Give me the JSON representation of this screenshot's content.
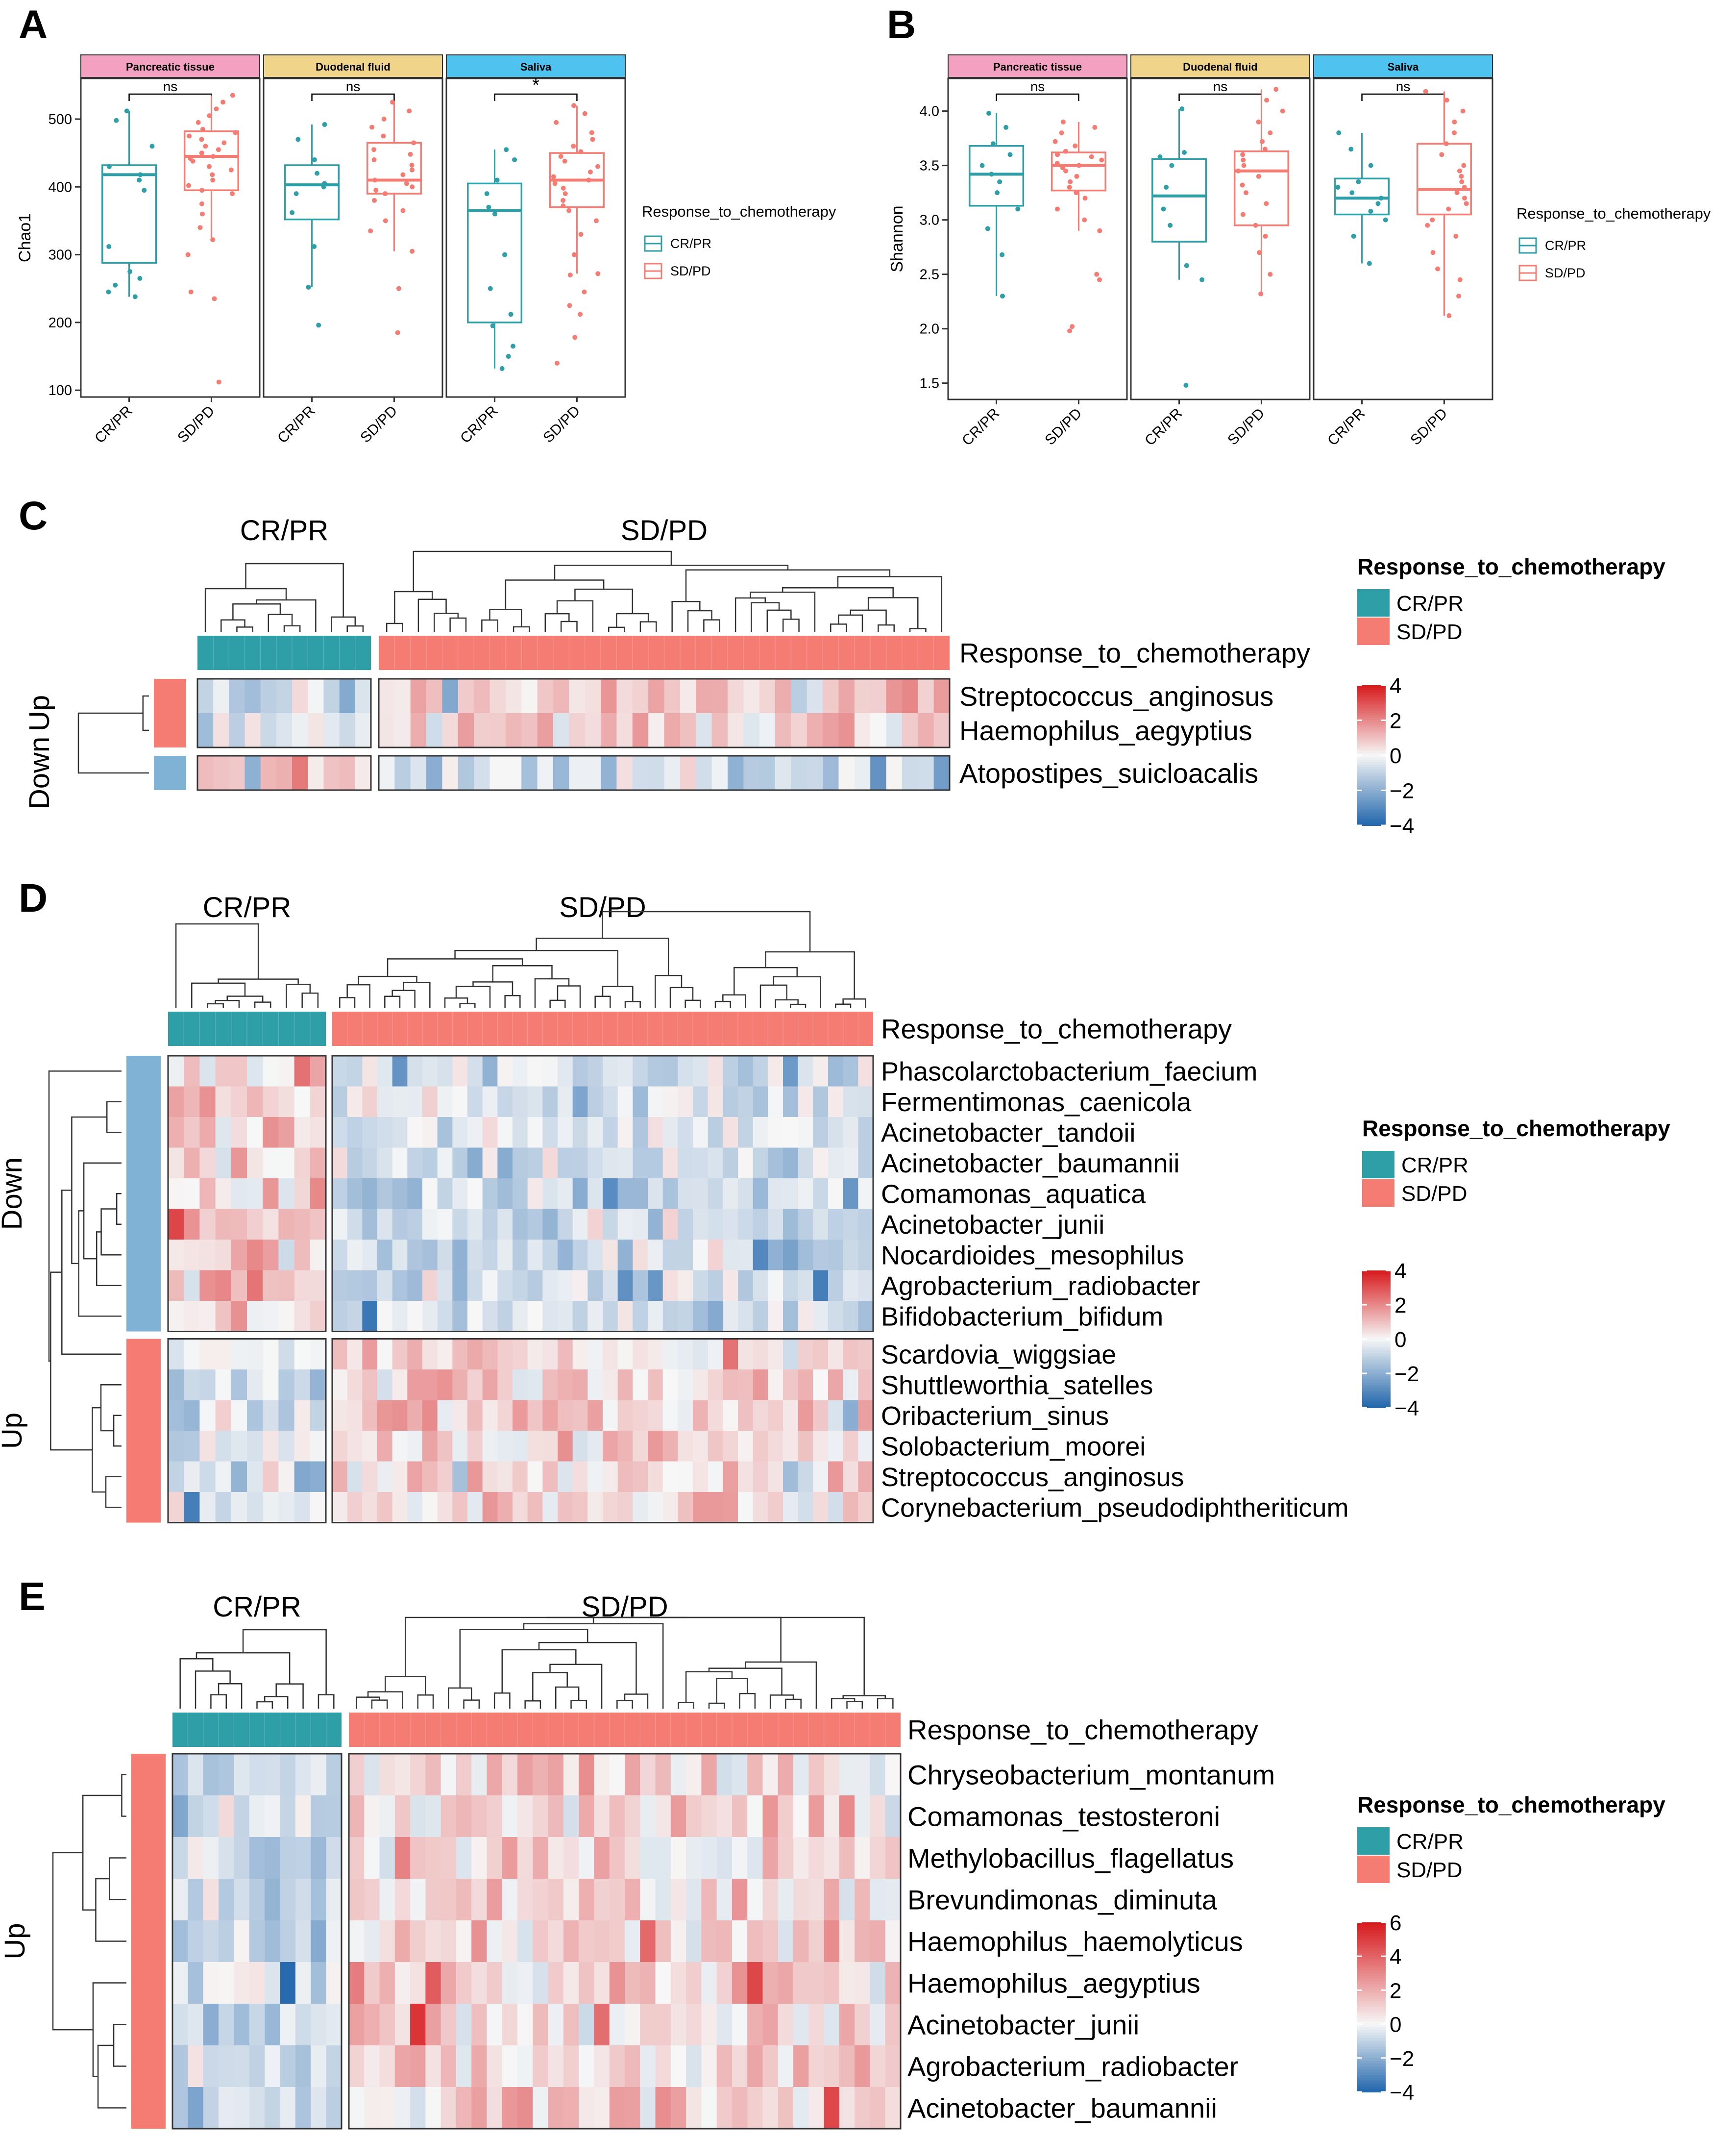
{
  "colors": {
    "crpr": "#2E9FA6",
    "sdpd": "#F47C73",
    "up": "#F47C73",
    "down": "#7FB2D5",
    "facet_pancreatic": "#F4A0C0",
    "facet_duodenal": "#EFD48A",
    "facet_saliva": "#4FC3F0",
    "heat_high": "#D7191C",
    "heat_mid": "#F7F7F7",
    "heat_low": "#2166AC"
  },
  "panel_labels": {
    "a": "A",
    "b": "B",
    "c": "C",
    "d": "D",
    "e": "E"
  },
  "chart_data": [
    {
      "id": "A",
      "type": "boxplot",
      "ylabel": "Chao1",
      "ylim": [
        90,
        560
      ],
      "yticks": [
        100,
        200,
        300,
        400,
        500
      ],
      "groups": [
        "CR/PR",
        "SD/PD"
      ],
      "facets": [
        {
          "label": "Pancreatic tissue",
          "color_key": "facet_pancreatic",
          "sig": "ns",
          "boxes": [
            {
              "group": "CR/PR",
              "q1": 288,
              "median": 418,
              "q3": 432,
              "whisker_low": 238,
              "whisker_high": 512,
              "points": [
                238,
                245,
                255,
                265,
                275,
                312,
                395,
                410,
                418,
                430,
                460,
                498,
                512
              ]
            },
            {
              "group": "SD/PD",
              "q1": 395,
              "median": 445,
              "q3": 482,
              "whisker_low": 322,
              "whisker_high": 535,
              "points": [
                112,
                235,
                245,
                300,
                322,
                340,
                360,
                375,
                390,
                395,
                402,
                410,
                418,
                425,
                430,
                438,
                442,
                445,
                450,
                455,
                460,
                465,
                470,
                475,
                480,
                485,
                495,
                505,
                515,
                525,
                535
              ]
            }
          ]
        },
        {
          "label": "Duodenal fluid",
          "color_key": "facet_duodenal",
          "sig": "ns",
          "boxes": [
            {
              "group": "CR/PR",
              "q1": 352,
              "median": 403,
              "q3": 432,
              "whisker_low": 252,
              "whisker_high": 492,
              "points": [
                196,
                252,
                312,
                362,
                390,
                400,
                405,
                420,
                440,
                470,
                492
              ]
            },
            {
              "group": "SD/PD",
              "q1": 390,
              "median": 410,
              "q3": 465,
              "whisker_low": 305,
              "whisker_high": 525,
              "points": [
                185,
                250,
                305,
                335,
                350,
                365,
                380,
                390,
                395,
                400,
                405,
                410,
                418,
                425,
                432,
                440,
                448,
                455,
                465,
                475,
                488,
                500,
                512,
                525
              ]
            }
          ]
        },
        {
          "label": "Saliva",
          "color_key": "facet_saliva",
          "sig": "*",
          "boxes": [
            {
              "group": "CR/PR",
              "q1": 200,
              "median": 365,
              "q3": 405,
              "whisker_low": 132,
              "whisker_high": 455,
              "points": [
                132,
                150,
                165,
                195,
                212,
                250,
                300,
                360,
                370,
                390,
                410,
                440,
                455
              ]
            },
            {
              "group": "SD/PD",
              "q1": 370,
              "median": 410,
              "q3": 450,
              "whisker_low": 272,
              "whisker_high": 520,
              "points": [
                140,
                178,
                212,
                225,
                245,
                270,
                272,
                300,
                330,
                350,
                365,
                372,
                380,
                390,
                398,
                405,
                410,
                415,
                422,
                430,
                438,
                445,
                452,
                460,
                470,
                480,
                495,
                508,
                520
              ]
            }
          ]
        }
      ],
      "legend": {
        "title": "Response_to_chemotherapy",
        "items": [
          "CR/PR",
          "SD/PD"
        ]
      }
    },
    {
      "id": "B",
      "type": "boxplot",
      "ylabel": "Shannon",
      "ylim": [
        1.35,
        4.3
      ],
      "yticks": [
        1.5,
        2.0,
        2.5,
        3.0,
        3.5,
        4.0
      ],
      "yticklabels": [
        "1.5",
        "2.0",
        "2.5",
        "3.0",
        "3.5",
        "4.0"
      ],
      "groups": [
        "CR/PR",
        "SD/PD"
      ],
      "facets": [
        {
          "label": "Pancreatic tissue",
          "color_key": "facet_pancreatic",
          "sig": "ns",
          "boxes": [
            {
              "group": "CR/PR",
              "q1": 3.13,
              "median": 3.42,
              "q3": 3.68,
              "whisker_low": 2.3,
              "whisker_high": 3.98,
              "points": [
                2.3,
                2.68,
                2.92,
                3.1,
                3.25,
                3.35,
                3.42,
                3.5,
                3.6,
                3.7,
                3.85,
                3.98
              ]
            },
            {
              "group": "SD/PD",
              "q1": 3.27,
              "median": 3.5,
              "q3": 3.62,
              "whisker_low": 2.9,
              "whisker_high": 3.9,
              "points": [
                1.98,
                2.02,
                2.45,
                2.5,
                2.9,
                3.0,
                3.1,
                3.2,
                3.25,
                3.3,
                3.35,
                3.4,
                3.45,
                3.48,
                3.5,
                3.52,
                3.55,
                3.58,
                3.6,
                3.63,
                3.68,
                3.72,
                3.8,
                3.85,
                3.9
              ]
            }
          ]
        },
        {
          "label": "Duodenal fluid",
          "color_key": "facet_duodenal",
          "sig": "ns",
          "boxes": [
            {
              "group": "CR/PR",
              "q1": 2.8,
              "median": 3.22,
              "q3": 3.56,
              "whisker_low": 2.45,
              "whisker_high": 4.02,
              "points": [
                1.48,
                2.45,
                2.58,
                2.95,
                3.1,
                3.3,
                3.5,
                3.58,
                3.62,
                4.02
              ]
            },
            {
              "group": "SD/PD",
              "q1": 2.95,
              "median": 3.45,
              "q3": 3.63,
              "whisker_low": 2.32,
              "whisker_high": 4.2,
              "points": [
                2.32,
                2.5,
                2.7,
                2.85,
                2.95,
                3.05,
                3.15,
                3.25,
                3.32,
                3.4,
                3.45,
                3.5,
                3.55,
                3.6,
                3.65,
                3.72,
                3.8,
                3.9,
                4.0,
                4.1,
                4.2
              ]
            }
          ]
        },
        {
          "label": "Saliva",
          "color_key": "facet_saliva",
          "sig": "ns",
          "boxes": [
            {
              "group": "CR/PR",
              "q1": 3.05,
              "median": 3.2,
              "q3": 3.38,
              "whisker_low": 2.6,
              "whisker_high": 3.8,
              "points": [
                2.6,
                2.85,
                3.0,
                3.08,
                3.15,
                3.2,
                3.25,
                3.3,
                3.35,
                3.5,
                3.65,
                3.8
              ]
            },
            {
              "group": "SD/PD",
              "q1": 3.05,
              "median": 3.28,
              "q3": 3.7,
              "whisker_low": 2.12,
              "whisker_high": 4.18,
              "points": [
                2.12,
                2.3,
                2.45,
                2.55,
                2.7,
                2.85,
                2.95,
                3.0,
                3.1,
                3.15,
                3.2,
                3.25,
                3.3,
                3.35,
                3.4,
                3.45,
                3.5,
                3.6,
                3.7,
                3.8,
                3.9,
                4.0,
                4.1,
                4.18
              ]
            }
          ]
        }
      ],
      "legend": {
        "title": "Response_to_chemotherapy",
        "items": [
          "CR/PR",
          "SD/PD"
        ]
      }
    },
    {
      "id": "C",
      "type": "heatmap",
      "group_titles": [
        "CR/PR",
        "SD/PD"
      ],
      "annotation_label": "Response_to_chemotherapy",
      "n_cols": [
        11,
        36
      ],
      "row_groups": [
        {
          "label": "Up",
          "color_key": "up",
          "rows": [
            "Streptococcus_anginosus",
            "Haemophilus_aegyptius"
          ]
        },
        {
          "label": "Down",
          "color_key": "down",
          "rows": [
            "Atopostipes_suicloacalis"
          ]
        }
      ],
      "legend": {
        "title": "Response_to_chemotherapy",
        "items": [
          "CR/PR",
          "SD/PD"
        ],
        "scale_ticks": [
          "4",
          "2",
          "0",
          "−2",
          "−4"
        ],
        "scale_range": [
          -4,
          4
        ]
      }
    },
    {
      "id": "D",
      "type": "heatmap",
      "group_titles": [
        "CR/PR",
        "SD/PD"
      ],
      "annotation_label": "Response_to_chemotherapy",
      "n_cols": [
        10,
        36
      ],
      "row_groups": [
        {
          "label": "Down",
          "color_key": "down",
          "rows": [
            "Phascolarctobacterium_faecium",
            "Fermentimonas_caenicola",
            "Acinetobacter_tandoii",
            "Acinetobacter_baumannii",
            "Comamonas_aquatica",
            "Acinetobacter_junii",
            "Nocardioides_mesophilus",
            "Agrobacterium_radiobacter",
            "Bifidobacterium_bifidum"
          ]
        },
        {
          "label": "Up",
          "color_key": "up",
          "rows": [
            "Scardovia_wiggsiae",
            "Shuttleworthia_satelles",
            "Oribacterium_sinus",
            "Solobacterium_moorei",
            "Streptococcus_anginosus",
            "Corynebacterium_pseudodiphtheriticum"
          ]
        }
      ],
      "legend": {
        "title": "Response_to_chemotherapy",
        "items": [
          "CR/PR",
          "SD/PD"
        ],
        "scale_ticks": [
          "4",
          "2",
          "0",
          "−2",
          "−4"
        ],
        "scale_range": [
          -4,
          4
        ]
      }
    },
    {
      "id": "E",
      "type": "heatmap",
      "group_titles": [
        "CR/PR",
        "SD/PD"
      ],
      "annotation_label": "Response_to_chemotherapy",
      "n_cols": [
        11,
        36
      ],
      "row_groups": [
        {
          "label": "Up",
          "color_key": "up",
          "rows": [
            "Chryseobacterium_montanum",
            "Comamonas_testosteroni",
            "Methylobacillus_flagellatus",
            "Brevundimonas_diminuta",
            "Haemophilus_haemolyticus",
            "Haemophilus_aegyptius",
            "Acinetobacter_junii",
            "Agrobacterium_radiobacter",
            "Acinetobacter_baumannii"
          ]
        }
      ],
      "legend": {
        "title": "Response_to_chemotherapy",
        "items": [
          "CR/PR",
          "SD/PD"
        ],
        "scale_ticks": [
          "6",
          "4",
          "2",
          "0",
          "−2",
          "−4"
        ],
        "scale_range": [
          -4,
          6
        ]
      }
    }
  ]
}
